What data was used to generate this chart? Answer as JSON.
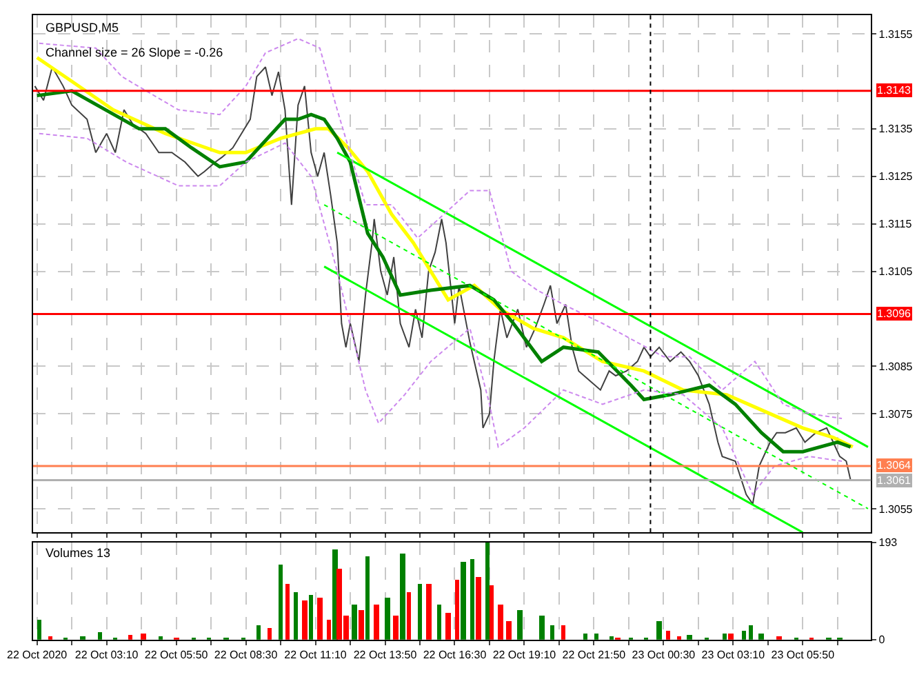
{
  "chart_data": [
    {
      "type": "line",
      "annotations": [
        "GBPUSD,M5",
        "Channel size = 26 Slope = -0.26"
      ],
      "xlim": [
        "2020-10-22T00:21",
        "2020-10-23T08:27"
      ],
      "ylim": [
        1.305,
        1.3159
      ],
      "yticks": [
        1.3055,
        1.3075,
        1.3085,
        1.3105,
        1.3115,
        1.3125,
        1.3135,
        1.3155
      ],
      "tick_labels": "y",
      "grid": true,
      "xticks": [
        {
          "value": "2020-10-22T00:30",
          "label": null
        },
        {
          "value": "2020-10-22T01:50",
          "label": null
        },
        {
          "value": "2020-10-22T03:10",
          "label": null
        },
        {
          "value": "2020-10-22T04:30",
          "label": null
        },
        {
          "value": "2020-10-22T05:50",
          "label": null
        },
        {
          "value": "2020-10-22T07:10",
          "label": null
        },
        {
          "value": "2020-10-22T08:30",
          "label": null
        },
        {
          "value": "2020-10-22T09:50",
          "label": null
        },
        {
          "value": "2020-10-22T11:10",
          "label": null
        },
        {
          "value": "2020-10-22T12:30",
          "label": null
        },
        {
          "value": "2020-10-22T13:50",
          "label": null
        },
        {
          "value": "2020-10-22T15:10",
          "label": null
        },
        {
          "value": "2020-10-22T16:30",
          "label": null
        },
        {
          "value": "2020-10-22T17:50",
          "label": null
        },
        {
          "value": "2020-10-22T19:10",
          "label": null
        },
        {
          "value": "2020-10-22T20:30",
          "label": null
        },
        {
          "value": "2020-10-22T21:50",
          "label": null
        },
        {
          "value": "2020-10-22T23:10",
          "label": null
        },
        {
          "value": "2020-10-23T00:30",
          "label": null
        },
        {
          "value": "2020-10-23T01:50",
          "label": null
        },
        {
          "value": "2020-10-23T03:10",
          "label": null
        },
        {
          "value": "2020-10-23T04:30",
          "label": null
        },
        {
          "value": "2020-10-23T05:50",
          "label": null
        },
        {
          "value": "2020-10-23T07:10",
          "label": null
        }
      ],
      "series": [
        {
          "color": "#404040",
          "line_style": "solid",
          "x": [
            "2020-10-22T00:25",
            "2020-10-22T00:45",
            "2020-10-22T01:05",
            "2020-10-22T01:30",
            "2020-10-22T01:50",
            "2020-10-22T02:25",
            "2020-10-22T02:45",
            "2020-10-22T03:10",
            "2020-10-22T03:30",
            "2020-10-22T03:50",
            "2020-10-22T04:10",
            "2020-10-22T04:40",
            "2020-10-22T05:10",
            "2020-10-22T05:40",
            "2020-10-22T06:10",
            "2020-10-22T06:40",
            "2020-10-22T06:55",
            "2020-10-22T07:20",
            "2020-10-22T07:35",
            "2020-10-22T08:00",
            "2020-10-22T08:20",
            "2020-10-22T08:40",
            "2020-10-22T08:55",
            "2020-10-22T09:15",
            "2020-10-22T09:30",
            "2020-10-22T09:45",
            "2020-10-22T10:00",
            "2020-10-22T10:15",
            "2020-10-22T10:30",
            "2020-10-22T10:45",
            "2020-10-22T11:00",
            "2020-10-22T11:15",
            "2020-10-22T11:30",
            "2020-10-22T11:45",
            "2020-10-22T12:00",
            "2020-10-22T12:10",
            "2020-10-22T12:20",
            "2020-10-22T12:30",
            "2020-10-22T12:50",
            "2020-10-22T13:05",
            "2020-10-22T13:20",
            "2020-10-22T13:25",
            "2020-10-22T13:40",
            "2020-10-22T13:55",
            "2020-10-22T14:10",
            "2020-10-22T14:25",
            "2020-10-22T14:45",
            "2020-10-22T15:00",
            "2020-10-22T15:15",
            "2020-10-22T15:30",
            "2020-10-22T15:45",
            "2020-10-22T16:00",
            "2020-10-22T16:10",
            "2020-10-22T16:30",
            "2020-10-22T16:40",
            "2020-10-22T17:05",
            "2020-10-22T17:30",
            "2020-10-22T17:35",
            "2020-10-22T17:50",
            "2020-10-22T18:00",
            "2020-10-22T18:15",
            "2020-10-22T18:30",
            "2020-10-22T18:55",
            "2020-10-22T19:15",
            "2020-10-22T19:35",
            "2020-10-22T19:55",
            "2020-10-22T20:10",
            "2020-10-22T20:25",
            "2020-10-22T20:45",
            "2020-10-22T21:00",
            "2020-10-22T21:15",
            "2020-10-22T21:40",
            "2020-10-22T22:05",
            "2020-10-22T22:25",
            "2020-10-22T22:40",
            "2020-10-22T23:05",
            "2020-10-22T23:30",
            "2020-10-22T23:45",
            "2020-10-23T00:00",
            "2020-10-23T00:20",
            "2020-10-23T00:45",
            "2020-10-23T01:10",
            "2020-10-23T01:30",
            "2020-10-23T01:50",
            "2020-10-23T02:15",
            "2020-10-23T02:35",
            "2020-10-23T02:45",
            "2020-10-23T03:15",
            "2020-10-23T03:40",
            "2020-10-23T03:55",
            "2020-10-23T04:10",
            "2020-10-23T04:35",
            "2020-10-23T04:50",
            "2020-10-23T05:10",
            "2020-10-23T05:35",
            "2020-10-23T05:55",
            "2020-10-23T06:20",
            "2020-10-23T06:45",
            "2020-10-23T07:00",
            "2020-10-23T07:15",
            "2020-10-23T07:30",
            "2020-10-23T07:40"
          ],
          "values": [
            1.3144,
            1.3141,
            1.3148,
            1.3144,
            1.314,
            1.3137,
            1.313,
            1.3134,
            1.313,
            1.3139,
            1.3136,
            1.3134,
            1.313,
            1.313,
            1.3128,
            1.3125,
            1.3126,
            1.3128,
            1.3129,
            1.3131,
            1.3134,
            1.3137,
            1.3146,
            1.3148,
            1.3142,
            1.3147,
            1.3139,
            1.3119,
            1.314,
            1.3144,
            1.313,
            1.3125,
            1.313,
            1.3121,
            1.3111,
            1.3094,
            1.3089,
            1.3094,
            1.3086,
            1.31,
            1.3111,
            1.3116,
            1.3105,
            1.31,
            1.3108,
            1.3094,
            1.3089,
            1.3097,
            1.3091,
            1.3105,
            1.3109,
            1.3116,
            1.3111,
            1.3094,
            1.3102,
            1.309,
            1.308,
            1.3072,
            1.3075,
            1.3086,
            1.3097,
            1.3091,
            1.3097,
            1.3089,
            1.3093,
            1.3098,
            1.3102,
            1.3094,
            1.3098,
            1.3089,
            1.3084,
            1.3082,
            1.308,
            1.3084,
            1.3083,
            1.3084,
            1.3086,
            1.3089,
            1.3087,
            1.3089,
            1.3086,
            1.3088,
            1.3086,
            1.3083,
            1.3077,
            1.3069,
            1.3066,
            1.3065,
            1.3058,
            1.3056,
            1.3064,
            1.3069,
            1.3071,
            1.3071,
            1.3072,
            1.3069,
            1.3071,
            1.3072,
            1.3069,
            1.3066,
            1.3065,
            1.3061
          ]
        },
        {
          "color": "#ffff00",
          "line_style": "solid",
          "x": [
            "2020-10-22T00:30",
            "2020-10-22T01:50",
            "2020-10-22T03:25",
            "2020-10-22T05:25",
            "2020-10-22T07:30",
            "2020-10-22T08:30",
            "2020-10-22T09:50",
            "2020-10-22T11:10",
            "2020-10-22T11:40",
            "2020-10-22T12:25",
            "2020-10-22T13:10",
            "2020-10-22T14:05",
            "2020-10-22T14:55",
            "2020-10-22T15:55",
            "2020-10-22T16:15",
            "2020-10-22T17:15",
            "2020-10-22T18:15",
            "2020-10-22T19:30",
            "2020-10-22T20:40",
            "2020-10-22T22:10",
            "2020-10-22T23:45",
            "2020-10-23T01:15",
            "2020-10-23T02:55",
            "2020-10-23T03:45",
            "2020-10-23T05:50",
            "2020-10-23T07:00",
            "2020-10-23T07:45"
          ],
          "values": [
            1.315,
            1.3145,
            1.3139,
            1.3134,
            1.313,
            1.313,
            1.3133,
            1.3135,
            1.3135,
            1.3131,
            1.3126,
            1.3117,
            1.3111,
            1.3102,
            1.3099,
            1.3102,
            1.3097,
            1.3093,
            1.3091,
            1.3086,
            1.3084,
            1.308,
            1.3079,
            1.3077,
            1.3072,
            1.307,
            1.3068
          ]
        },
        {
          "color": "#008000",
          "line_style": "solid",
          "x": [
            "2020-10-22T00:30",
            "2020-10-22T01:50",
            "2020-10-22T04:25",
            "2020-10-22T05:25",
            "2020-10-22T06:25",
            "2020-10-22T07:30",
            "2020-10-22T08:30",
            "2020-10-22T10:00",
            "2020-10-22T10:30",
            "2020-10-22T11:00",
            "2020-10-22T11:30",
            "2020-10-22T12:00",
            "2020-10-22T12:30",
            "2020-10-22T13:10",
            "2020-10-22T13:45",
            "2020-10-22T14:25",
            "2020-10-22T15:35",
            "2020-10-22T17:05",
            "2020-10-22T18:00",
            "2020-10-22T18:45",
            "2020-10-22T19:50",
            "2020-10-22T20:40",
            "2020-10-22T22:00",
            "2020-10-22T23:15",
            "2020-10-22T23:45",
            "2020-10-23T00:45",
            "2020-10-23T02:15",
            "2020-10-23T03:15",
            "2020-10-23T04:15",
            "2020-10-23T05:05",
            "2020-10-23T05:50",
            "2020-10-23T07:10",
            "2020-10-23T07:40"
          ],
          "values": [
            1.3142,
            1.3143,
            1.3135,
            1.3135,
            1.3131,
            1.3127,
            1.3128,
            1.3137,
            1.3137,
            1.3138,
            1.3137,
            1.3133,
            1.3128,
            1.3113,
            1.3108,
            1.31,
            1.3101,
            1.3102,
            1.3099,
            1.3094,
            1.3086,
            1.3089,
            1.3088,
            1.3081,
            1.3078,
            1.3079,
            1.3081,
            1.3077,
            1.3071,
            1.3067,
            1.3067,
            1.3069,
            1.3068
          ]
        },
        {
          "color": "#00ff00",
          "line_style": "solid",
          "x": [
            "2020-10-22T12:00",
            "2020-10-23T08:20"
          ],
          "values": [
            1.313,
            1.3068
          ]
        },
        {
          "color": "#00ff00",
          "line_style": "solid",
          "x": [
            "2020-10-22T11:30",
            "2020-10-23T05:50"
          ],
          "values": [
            1.3106,
            1.305
          ]
        },
        {
          "color": "#00ff00",
          "line_style": "dotted",
          "x": [
            "2020-10-22T11:30",
            "2020-10-23T08:20"
          ],
          "values": [
            1.3119,
            1.3055
          ]
        },
        {
          "color": "#cc88ee",
          "line_style": "dashed",
          "x": [
            "2020-10-22T00:35",
            "2020-10-22T02:45",
            "2020-10-22T03:45",
            "2020-10-22T05:55",
            "2020-10-22T07:30",
            "2020-10-22T08:30",
            "2020-10-22T09:15",
            "2020-10-22T10:30",
            "2020-10-22T11:20",
            "2020-10-22T12:00",
            "2020-10-22T13:05",
            "2020-10-22T14:05",
            "2020-10-22T15:05",
            "2020-10-22T17:05",
            "2020-10-22T17:50",
            "2020-10-22T18:40",
            "2020-10-22T19:40",
            "2020-10-22T20:40",
            "2020-10-22T22:10",
            "2020-10-22T23:30",
            "2020-10-23T00:30",
            "2020-10-23T01:30",
            "2020-10-23T02:45",
            "2020-10-23T04:00",
            "2020-10-23T05:05",
            "2020-10-23T06:05",
            "2020-10-23T07:20"
          ],
          "values": [
            1.3153,
            1.3152,
            1.3146,
            1.3139,
            1.3138,
            1.3144,
            1.3151,
            1.3154,
            1.3152,
            1.3139,
            1.3119,
            1.3119,
            1.3112,
            1.3122,
            1.3122,
            1.3105,
            1.3101,
            1.3098,
            1.3094,
            1.309,
            1.3087,
            1.3087,
            1.308,
            1.3086,
            1.3077,
            1.3075,
            1.3074
          ]
        },
        {
          "color": "#cc88ee",
          "line_style": "dashed",
          "x": [
            "2020-10-22T00:35",
            "2020-10-22T02:25",
            "2020-10-22T03:55",
            "2020-10-22T05:55",
            "2020-10-22T07:30",
            "2020-10-22T08:30",
            "2020-10-22T10:00",
            "2020-10-22T11:00",
            "2020-10-22T12:00",
            "2020-10-22T13:05",
            "2020-10-22T13:35",
            "2020-10-22T14:35",
            "2020-10-22T15:35",
            "2020-10-22T17:05",
            "2020-10-22T17:50",
            "2020-10-22T18:10",
            "2020-10-22T19:10",
            "2020-10-22T20:40",
            "2020-10-22T22:10",
            "2020-10-22T23:45",
            "2020-10-23T01:15",
            "2020-10-23T02:45",
            "2020-10-23T03:55",
            "2020-10-23T04:45",
            "2020-10-23T06:05",
            "2020-10-23T07:20"
          ],
          "values": [
            1.3134,
            1.3133,
            1.3128,
            1.3123,
            1.3123,
            1.3128,
            1.3132,
            1.3125,
            1.3105,
            1.308,
            1.3073,
            1.3079,
            1.3086,
            1.3093,
            1.3077,
            1.3068,
            1.3072,
            1.308,
            1.3077,
            1.308,
            1.3079,
            1.3072,
            1.3058,
            1.3064,
            1.3066,
            1.3065
          ]
        }
      ],
      "ref_lines": [
        {
          "axis": "y",
          "value": 1.3143,
          "label": "1.3143",
          "color": "#ff0000",
          "line_style": "solid"
        },
        {
          "axis": "y",
          "value": 1.3096,
          "label": "1.3096",
          "color": "#ff0000",
          "line_style": "solid"
        },
        {
          "axis": "y",
          "value": 1.3064,
          "label": "1.3064",
          "color": "#ff7f50",
          "line_style": "solid"
        },
        {
          "axis": "y",
          "value": 1.3061,
          "label": "1.3061",
          "color": "#b0b0b0",
          "line_style": "solid"
        },
        {
          "axis": "x",
          "value": "2020-10-23T00:00",
          "color": "#000000",
          "line_style": "dotted"
        }
      ]
    },
    {
      "type": "bar",
      "annotations": [
        "Volumes 13"
      ],
      "xlim": [
        "2020-10-22T00:21",
        "2020-10-23T08:27"
      ],
      "xticks": [
        {
          "value": "2020-10-22T00:30",
          "label": "22 Oct 2020"
        },
        {
          "value": "2020-10-22T01:50",
          "label": null
        },
        {
          "value": "2020-10-22T03:10",
          "label": "22 Oct 03:10"
        },
        {
          "value": "2020-10-22T04:30",
          "label": null
        },
        {
          "value": "2020-10-22T05:50",
          "label": "22 Oct 05:50"
        },
        {
          "value": "2020-10-22T07:10",
          "label": null
        },
        {
          "value": "2020-10-22T08:30",
          "label": "22 Oct 08:30"
        },
        {
          "value": "2020-10-22T09:50",
          "label": null
        },
        {
          "value": "2020-10-22T11:10",
          "label": "22 Oct 11:10"
        },
        {
          "value": "2020-10-22T12:30",
          "label": null
        },
        {
          "value": "2020-10-22T13:50",
          "label": "22 Oct 13:50"
        },
        {
          "value": "2020-10-22T15:10",
          "label": null
        },
        {
          "value": "2020-10-22T16:30",
          "label": "22 Oct 16:30"
        },
        {
          "value": "2020-10-22T17:50",
          "label": null
        },
        {
          "value": "2020-10-22T19:10",
          "label": "22 Oct 19:10"
        },
        {
          "value": "2020-10-22T20:30",
          "label": null
        },
        {
          "value": "2020-10-22T21:50",
          "label": "22 Oct 21:50"
        },
        {
          "value": "2020-10-22T23:10",
          "label": null
        },
        {
          "value": "2020-10-23T00:30",
          "label": "23 Oct 00:30"
        },
        {
          "value": "2020-10-23T01:50",
          "label": null
        },
        {
          "value": "2020-10-23T03:10",
          "label": "23 Oct 03:10"
        },
        {
          "value": "2020-10-23T04:30",
          "label": null
        },
        {
          "value": "2020-10-23T05:50",
          "label": "23 Oct 05:50"
        },
        {
          "value": "2020-10-23T07:10",
          "label": null
        }
      ],
      "ylim": [
        0,
        193
      ],
      "yticks": [
        0,
        193
      ],
      "grid": "x",
      "x": [
        "2020-10-22T00:35",
        "2020-10-22T01:00",
        "2020-10-22T01:35",
        "2020-10-22T02:15",
        "2020-10-22T02:55",
        "2020-10-22T03:30",
        "2020-10-22T04:05",
        "2020-10-22T04:35",
        "2020-10-22T05:15",
        "2020-10-22T05:50",
        "2020-10-22T06:30",
        "2020-10-22T07:05",
        "2020-10-22T07:45",
        "2020-10-22T08:25",
        "2020-10-22T09:00",
        "2020-10-22T09:25",
        "2020-10-22T09:50",
        "2020-10-22T10:05",
        "2020-10-22T10:25",
        "2020-10-22T10:45",
        "2020-10-22T11:00",
        "2020-10-22T11:20",
        "2020-10-22T11:40",
        "2020-10-22T11:55",
        "2020-10-22T12:05",
        "2020-10-22T12:20",
        "2020-10-22T12:40",
        "2020-10-22T12:55",
        "2020-10-22T13:10",
        "2020-10-22T13:30",
        "2020-10-22T13:55",
        "2020-10-22T14:15",
        "2020-10-22T14:30",
        "2020-10-22T14:45",
        "2020-10-22T15:10",
        "2020-10-22T15:30",
        "2020-10-22T15:55",
        "2020-10-22T16:15",
        "2020-10-22T16:35",
        "2020-10-22T16:50",
        "2020-10-22T17:10",
        "2020-10-22T17:25",
        "2020-10-22T17:45",
        "2020-10-22T17:55",
        "2020-10-22T18:15",
        "2020-10-22T18:35",
        "2020-10-22T19:00",
        "2020-10-22T19:50",
        "2020-10-22T20:15",
        "2020-10-22T20:40",
        "2020-10-22T21:30",
        "2020-10-22T21:55",
        "2020-10-22T22:30",
        "2020-10-22T22:45",
        "2020-10-22T23:15",
        "2020-10-22T23:50",
        "2020-10-23T00:20",
        "2020-10-23T00:40",
        "2020-10-23T01:05",
        "2020-10-23T01:30",
        "2020-10-23T02:10",
        "2020-10-23T02:50",
        "2020-10-23T03:05",
        "2020-10-23T03:35",
        "2020-10-23T03:50",
        "2020-10-23T04:15",
        "2020-10-23T04:55",
        "2020-10-23T05:35",
        "2020-10-23T06:10",
        "2020-10-23T06:50",
        "2020-10-23T07:15"
      ],
      "values": [
        41,
        8,
        5,
        8,
        14,
        5,
        9,
        12,
        6,
        5,
        5,
        5,
        5,
        5,
        30,
        24,
        148,
        112,
        95,
        77,
        89,
        83,
        41,
        178,
        142,
        47,
        71,
        59,
        166,
        71,
        83,
        47,
        172,
        95,
        112,
        112,
        71,
        53,
        118,
        154,
        160,
        124,
        193,
        107,
        71,
        36,
        59,
        47,
        30,
        30,
        12,
        12,
        6,
        5,
        5,
        5,
        36,
        18,
        6,
        9,
        5,
        12,
        12,
        18,
        30,
        12,
        6,
        5,
        5,
        5,
        5
      ],
      "colors": [
        "#008000",
        "#ff0000",
        "#008000",
        "#008000",
        "#008000",
        "#008000",
        "#ff0000",
        "#ff0000",
        "#008000",
        "#ff0000",
        "#008000",
        "#008000",
        "#008000",
        "#008000",
        "#008000",
        "#ff0000",
        "#008000",
        "#ff0000",
        "#008000",
        "#ff0000",
        "#008000",
        "#ff0000",
        "#ff0000",
        "#008000",
        "#ff0000",
        "#ff0000",
        "#008000",
        "#ff0000",
        "#008000",
        "#ff0000",
        "#008000",
        "#ff0000",
        "#008000",
        "#ff0000",
        "#008000",
        "#ff0000",
        "#008000",
        "#ff0000",
        "#ff0000",
        "#008000",
        "#008000",
        "#ff0000",
        "#008000",
        "#ff0000",
        "#ff0000",
        "#ff0000",
        "#008000",
        "#008000",
        "#008000",
        "#ff0000",
        "#008000",
        "#008000",
        "#008000",
        "#ff0000",
        "#008000",
        "#008000",
        "#008000",
        "#ff0000",
        "#ff0000",
        "#008000",
        "#008000",
        "#008000",
        "#ff0000",
        "#008000",
        "#008000",
        "#008000",
        "#ff0000",
        "#008000",
        "#ff0000",
        "#008000",
        "#008000"
      ]
    }
  ]
}
